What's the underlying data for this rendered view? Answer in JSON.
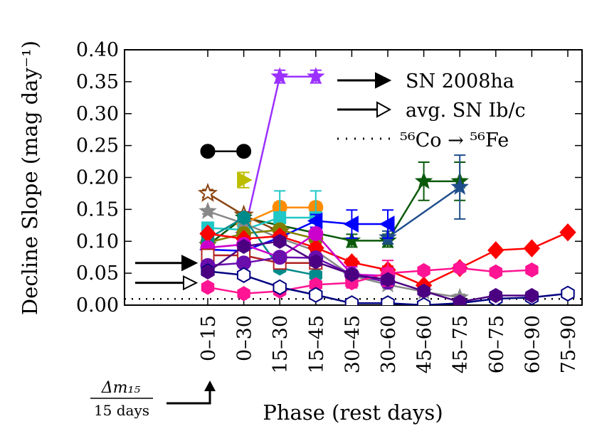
{
  "chart_data": {
    "type": "line",
    "xlabel": "Phase (rest days)",
    "ylabel": "Decline Slope (mag day⁻¹)",
    "ylim": [
      0,
      0.4
    ],
    "yticks": [
      "0.00",
      "0.05",
      "0.10",
      "0.15",
      "0.20",
      "0.25",
      "0.30",
      "0.35",
      "0.40"
    ],
    "categories": [
      "0–15",
      "0–30",
      "15–30",
      "15–45",
      "30–45",
      "30–60",
      "45–60",
      "45–75",
      "60–75",
      "60–90",
      "75–90"
    ],
    "reference_line": {
      "label": "⁵⁶Co → ⁵⁶Fe",
      "value": 0.0098,
      "style": "dotted"
    },
    "arrows": [
      {
        "label": "SN 2008ha",
        "value": 0.066,
        "style": "filled"
      },
      {
        "label": "avg. SN Ib/c",
        "value": 0.035,
        "style": "open"
      }
    ],
    "annotation": {
      "numerator": "Δm₁₅",
      "denominator": "15 days",
      "points_to": "0–15"
    },
    "series": [
      {
        "name": "black circles",
        "color": "#000000",
        "marker": "circle",
        "filled": true,
        "x": [
          0,
          1
        ],
        "y": [
          0.241,
          0.241
        ],
        "err": [
          0.004,
          0.004
        ]
      },
      {
        "name": "purple stars",
        "color": "#9B30FF",
        "marker": "star",
        "filled": true,
        "x": [
          1,
          2,
          3
        ],
        "y": [
          0.11,
          0.358,
          0.358
        ],
        "err": [
          0.005,
          0.01,
          0.01
        ]
      },
      {
        "name": "dark green stars",
        "color": "#0B5A0B",
        "marker": "star",
        "filled": true,
        "x": [
          0,
          1,
          4,
          5,
          6,
          7
        ],
        "y": [
          0.094,
          0.137,
          0.101,
          0.101,
          0.194,
          0.194
        ],
        "err": [
          0.004,
          0.005,
          0.01,
          0.01,
          0.03,
          0.03
        ]
      },
      {
        "name": "steel blue stars",
        "color": "#1F4E8C",
        "marker": "star",
        "filled": true,
        "x": [
          5,
          7
        ],
        "y": [
          0.106,
          0.185
        ],
        "err": [
          0.01,
          0.05
        ]
      },
      {
        "name": "brown stars",
        "color": "#8B4513",
        "marker": "star",
        "filled": false,
        "x": [
          0,
          1,
          2
        ],
        "y": [
          0.175,
          0.141,
          0.115
        ],
        "err": [
          0.006,
          0.005,
          0.006
        ]
      },
      {
        "name": "olive triangles",
        "color": "#BDBD00",
        "marker": "triangle-right",
        "filled": true,
        "x": [
          1
        ],
        "y": [
          0.196
        ],
        "err": [
          0.012
        ]
      },
      {
        "name": "orange circles",
        "color": "#FF8C00",
        "marker": "circle",
        "filled": true,
        "x": [
          1,
          2,
          3
        ],
        "y": [
          0.128,
          0.153,
          0.153
        ],
        "err": [
          0.006,
          0.008,
          0.008
        ]
      },
      {
        "name": "cyan squares",
        "color": "#20C7C7",
        "marker": "square",
        "filled": true,
        "x": [
          0,
          1,
          2,
          3
        ],
        "y": [
          0.121,
          0.118,
          0.137,
          0.137
        ],
        "err": [
          0.005,
          0.006,
          0.042,
          0.042
        ]
      },
      {
        "name": "blue triangles",
        "color": "#0000FF",
        "marker": "triangle-left",
        "filled": true,
        "x": [
          0,
          1,
          2,
          3,
          4,
          5
        ],
        "y": [
          0.087,
          0.085,
          0.106,
          0.132,
          0.127,
          0.127
        ],
        "err": [
          0.004,
          0.004,
          0.006,
          0.01,
          0.022,
          0.022
        ]
      },
      {
        "name": "gray stars",
        "color": "#888888",
        "marker": "star",
        "filled": true,
        "x": [
          0,
          1,
          2,
          3,
          4,
          5,
          6,
          7
        ],
        "y": [
          0.147,
          0.128,
          0.105,
          0.085,
          0.046,
          0.032,
          0.021,
          0.012
        ],
        "err": [
          0.004,
          0.004,
          0.005,
          0.005,
          0.005,
          0.005,
          0.005,
          0.005
        ]
      },
      {
        "name": "olive circles",
        "color": "#808000",
        "marker": "circle",
        "filled": true,
        "x": [
          0,
          1,
          2,
          3
        ],
        "y": [
          0.098,
          0.112,
          0.118,
          0.104
        ],
        "err": [
          0.003,
          0.004,
          0.004,
          0.004
        ]
      },
      {
        "name": "teal hexagons",
        "color": "#008B8B",
        "marker": "hexagon",
        "filled": true,
        "x": [
          0,
          1,
          2,
          3
        ],
        "y": [
          0.104,
          0.137,
          0.058,
          0.047
        ],
        "err": [
          0.004,
          0.006,
          0.006,
          0.006
        ]
      },
      {
        "name": "red diamonds",
        "color": "#FF0000",
        "marker": "diamond",
        "filled": true,
        "x": [
          0,
          1,
          2,
          3,
          4,
          5,
          6,
          7,
          8,
          9,
          10
        ],
        "y": [
          0.112,
          0.104,
          0.108,
          0.09,
          0.067,
          0.055,
          0.031,
          0.058,
          0.086,
          0.089,
          0.114
        ],
        "err": [
          0.004,
          0.004,
          0.006,
          0.006,
          0.006,
          0.006,
          0.004,
          0.004,
          0.004,
          0.004,
          0.004
        ]
      },
      {
        "name": "magenta circles",
        "color": "#CC00CC",
        "marker": "circle",
        "filled": true,
        "x": [
          0,
          1,
          2,
          3,
          4,
          5
        ],
        "y": [
          0.09,
          0.095,
          0.075,
          0.112,
          0.048,
          0.046
        ],
        "err": [
          0.004,
          0.004,
          0.005,
          0.005,
          0.012,
          0.012
        ]
      },
      {
        "name": "dark red squares",
        "color": "#B22222",
        "marker": "square",
        "filled": false,
        "x": [
          0,
          1,
          2,
          3
        ],
        "y": [
          0.078,
          0.078,
          0.066,
          0.066
        ],
        "err": [
          0.004,
          0.004,
          0.004,
          0.004
        ]
      },
      {
        "name": "purple circles",
        "color": "#6A0DAD",
        "marker": "circle",
        "filled": true,
        "x": [
          0,
          1,
          2,
          3,
          4,
          5
        ],
        "y": [
          0.062,
          0.066,
          0.075,
          0.074,
          0.048,
          0.036
        ],
        "err": [
          0.004,
          0.004,
          0.005,
          0.005,
          0.005,
          0.005
        ]
      },
      {
        "name": "pink hexagons",
        "color": "#FF1493",
        "marker": "hexagon",
        "filled": true,
        "x": [
          0,
          1,
          2,
          3,
          4,
          5,
          6,
          7,
          8,
          9
        ],
        "y": [
          0.028,
          0.018,
          0.022,
          0.032,
          0.035,
          0.05,
          0.054,
          0.058,
          0.052,
          0.055
        ],
        "err": [
          0.003,
          0.003,
          0.003,
          0.006,
          0.008,
          0.02,
          0.004,
          0.004,
          0.006,
          0.006
        ]
      },
      {
        "name": "navy hexagons",
        "color": "#000080",
        "marker": "hexagon",
        "filled": false,
        "x": [
          0,
          1,
          2,
          3,
          4,
          5,
          6,
          7,
          8,
          9,
          10
        ],
        "y": [
          0.053,
          0.047,
          0.028,
          0.016,
          0.003,
          0.003,
          0.0,
          0.003,
          0.01,
          0.012,
          0.018
        ],
        "err": [
          0.004,
          0.004,
          0.005,
          0.004,
          0.003,
          0.003,
          0.002,
          0.003,
          0.004,
          0.004,
          0.004
        ]
      },
      {
        "name": "indigo hexagons",
        "color": "#4B0082",
        "marker": "hexagon",
        "filled": true,
        "x": [
          0,
          1,
          2,
          3,
          4,
          5,
          6,
          7,
          8,
          9
        ],
        "y": [
          0.052,
          0.092,
          0.1,
          0.068,
          0.048,
          0.04,
          0.022,
          0.005,
          0.015,
          0.015
        ],
        "err": [
          0.004,
          0.004,
          0.005,
          0.005,
          0.005,
          0.005,
          0.004,
          0.004,
          0.004,
          0.004
        ]
      }
    ]
  }
}
